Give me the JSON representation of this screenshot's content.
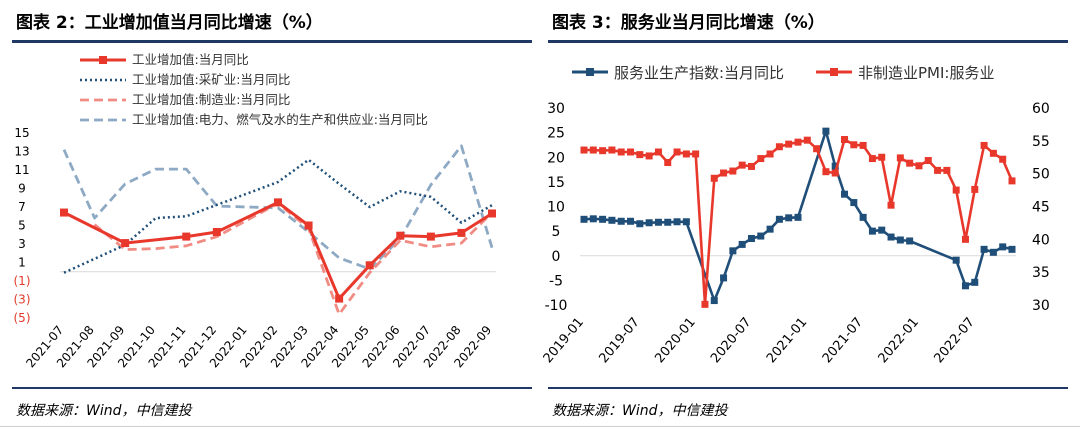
{
  "left": {
    "title": "图表 2：工业增加值当月同比增速（%）",
    "source": "数据来源：Wind，中信建投",
    "chart_data": {
      "type": "line",
      "categories": [
        "2021-07",
        "2021-08",
        "2021-09",
        "2021-10",
        "2021-11",
        "2021-12",
        "2022-01",
        "2022-02",
        "2022-03",
        "2022-04",
        "2022-05",
        "2022-06",
        "2022-07",
        "2022-08",
        "2022-09"
      ],
      "ylim": [
        -5,
        15
      ],
      "yticks": [
        15,
        13,
        11,
        9,
        7,
        5,
        3,
        1,
        -1,
        -3,
        -5
      ],
      "ytick_labels": [
        "15",
        "13",
        "11",
        "9",
        "7",
        "5",
        "3",
        "1",
        "(1)",
        "(3)",
        "(5)"
      ],
      "negative_label_color": "#e23b2c",
      "series": [
        {
          "name": "工业增加值:当月同比",
          "color": "#e8382c",
          "style": "solid-marker",
          "values": [
            6.4,
            null,
            3.1,
            null,
            3.8,
            4.3,
            null,
            7.5,
            5.0,
            -2.9,
            0.7,
            3.9,
            3.8,
            4.2,
            6.3
          ]
        },
        {
          "name": "工业增加值:采矿业:当月同比",
          "color": "#1f4e79",
          "style": "dotted",
          "values": [
            -0.1,
            null,
            2.9,
            5.8,
            6.0,
            null,
            null,
            9.7,
            12.1,
            9.5,
            7.0,
            8.7,
            8.1,
            5.3,
            7.2
          ]
        },
        {
          "name": "工业增加值:制造业:当月同比",
          "color": "#f08c84",
          "style": "dashed",
          "values": [
            null,
            5.1,
            2.4,
            2.5,
            2.8,
            3.8,
            null,
            7.4,
            4.7,
            -4.6,
            -0.1,
            3.4,
            2.7,
            3.1,
            6.4
          ]
        },
        {
          "name": "工业增加值:电力、燃气及水的生产和供应业:当月同比",
          "color": "#8ea9c4",
          "style": "dashed",
          "values": [
            13.2,
            5.8,
            9.5,
            11.1,
            11.1,
            7.1,
            null,
            6.9,
            4.3,
            1.5,
            0.3,
            3.6,
            9.4,
            13.6,
            2.6
          ]
        }
      ],
      "legend_placement": "top-left"
    }
  },
  "right": {
    "title": "图表 3：服务业当月同比增速（%）",
    "source": "数据来源：Wind，中信建投",
    "chart_data": {
      "type": "line",
      "x_tick_labels": [
        "2019-01",
        "2019-07",
        "2020-01",
        "2020-07",
        "2021-01",
        "2021-07",
        "2022-01",
        "2022-07"
      ],
      "y_left": {
        "ylim": [
          -10,
          30
        ],
        "ticks": [
          30,
          25,
          20,
          15,
          10,
          5,
          0,
          -5,
          -10
        ]
      },
      "y_right": {
        "ylim": [
          30,
          60
        ],
        "ticks": [
          60,
          55,
          50,
          45,
          40,
          35,
          30
        ]
      },
      "series": [
        {
          "name": "服务业生产指数:当月同比",
          "color": "#1f4e79",
          "axis": "left",
          "values": [
            7.4,
            7.5,
            7.4,
            7.2,
            7.0,
            7.0,
            6.5,
            6.7,
            6.8,
            6.8,
            6.9,
            6.9,
            null,
            null,
            -9.1,
            -4.5,
            1.0,
            2.3,
            3.5,
            4.0,
            5.4,
            7.4,
            7.7,
            7.8,
            null,
            null,
            25.3,
            18.2,
            12.5,
            10.8,
            7.8,
            5.0,
            5.2,
            3.8,
            3.2,
            3.0,
            null,
            null,
            null,
            null,
            -0.9,
            -6.1,
            -5.4,
            1.3,
            0.7,
            1.8,
            1.3
          ]
        },
        {
          "name": "非制造业PMI:服务业",
          "color": "#e8382c",
          "axis": "right",
          "values": [
            53.6,
            53.6,
            53.5,
            53.6,
            53.3,
            53.3,
            52.9,
            52.7,
            53.3,
            51.7,
            53.3,
            53.0,
            53.0,
            30.1,
            49.3,
            50.1,
            50.4,
            51.3,
            51.1,
            52.3,
            53.0,
            54.1,
            54.5,
            54.8,
            55.1,
            53.8,
            50.3,
            50.1,
            55.2,
            54.4,
            54.3,
            52.3,
            52.5,
            45.2,
            52.4,
            51.6,
            51.2,
            52.0,
            50.5,
            50.5,
            47.5,
            40.0,
            47.6,
            54.3,
            53.1,
            52.2,
            48.9
          ]
        }
      ],
      "legend_placement": "top"
    }
  }
}
